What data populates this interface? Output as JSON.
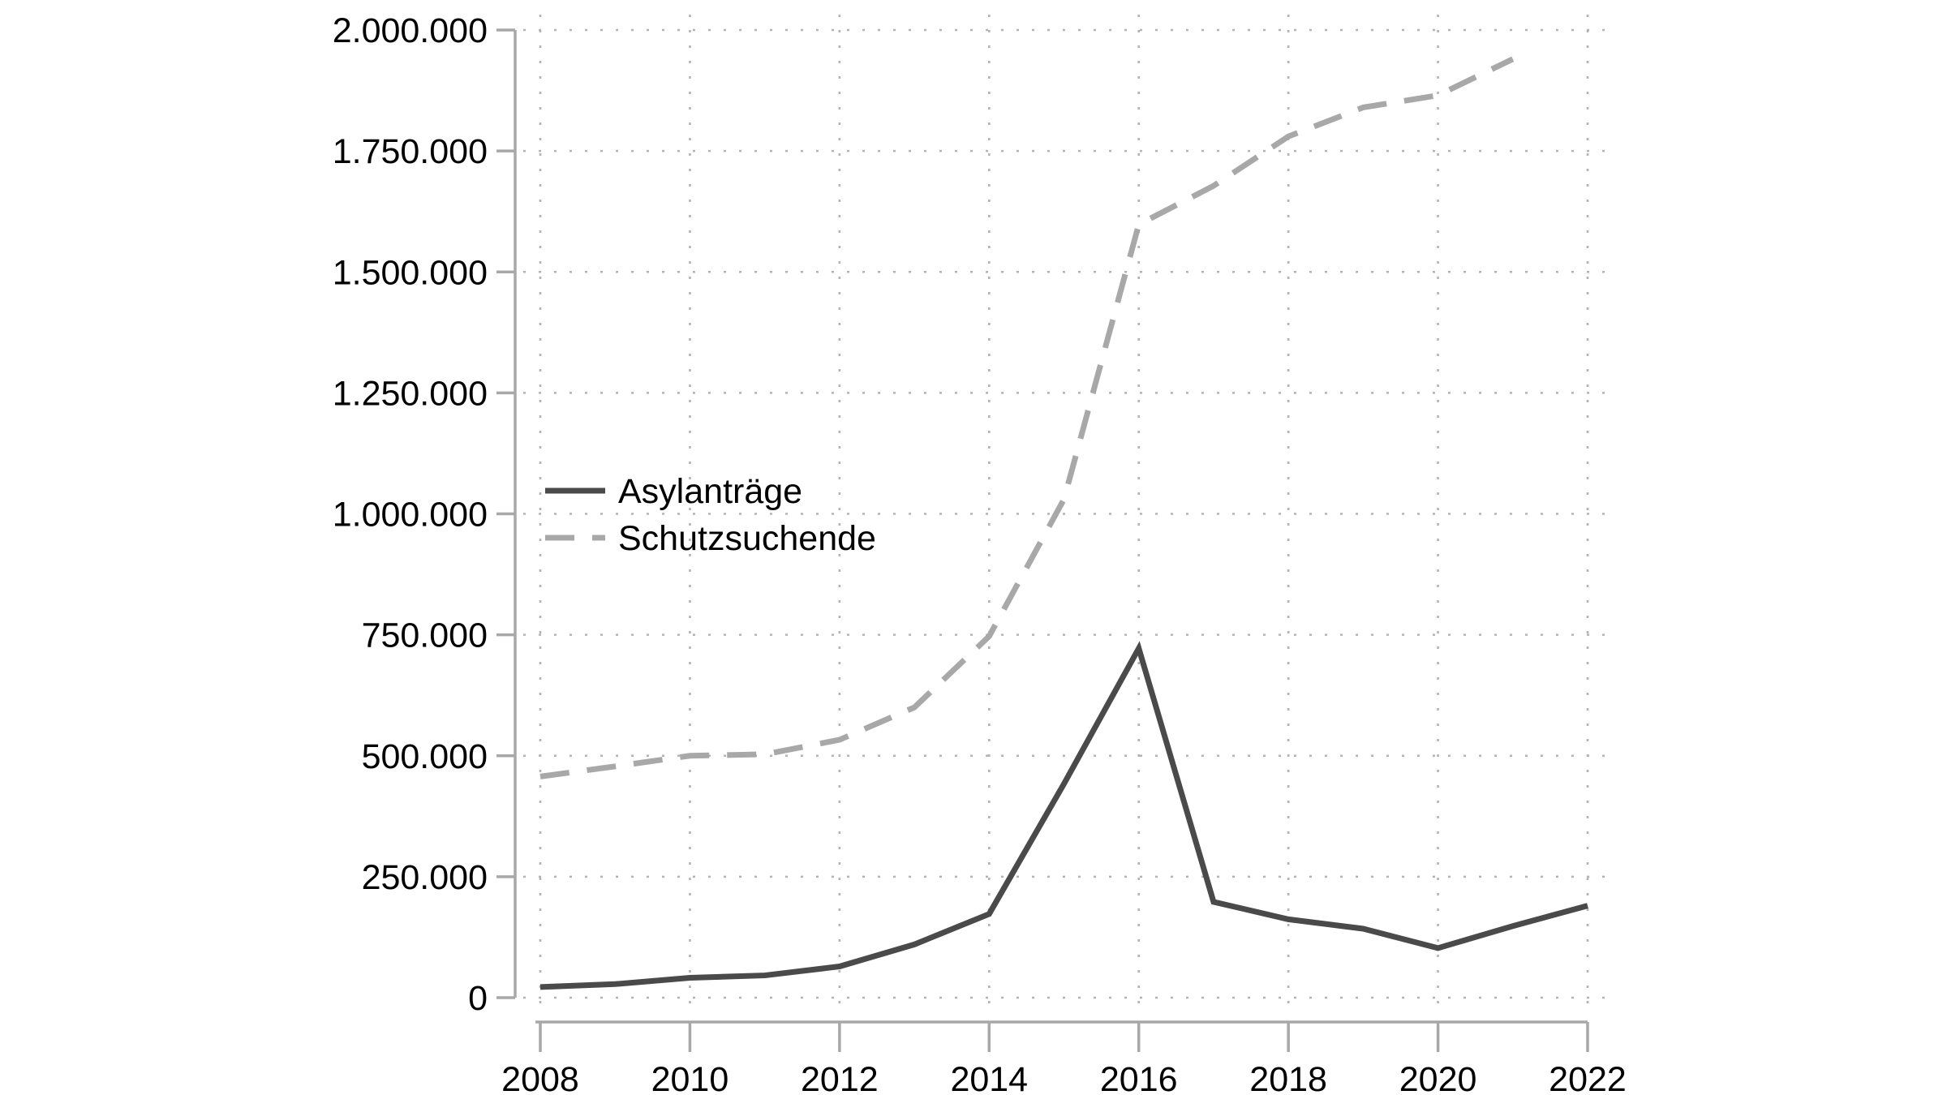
{
  "chart_data": {
    "type": "line",
    "title": "",
    "xlabel": "",
    "ylabel": "",
    "x_years": [
      2008,
      2009,
      2010,
      2011,
      2012,
      2013,
      2014,
      2015,
      2016,
      2017,
      2018,
      2019,
      2020,
      2021,
      2022
    ],
    "series": [
      {
        "name": "Asylanträge",
        "style": "solid",
        "color": "#4a4a4a",
        "values": [
          22000,
          28000,
          41000,
          46000,
          64500,
          110000,
          173000,
          442000,
          722000,
          198000,
          162000,
          142500,
          102500,
          148000,
          190000
        ]
      },
      {
        "name": "Schutzsuchende",
        "style": "dashed",
        "color": "#a8a8a8",
        "values": [
          457000,
          478000,
          500000,
          503000,
          533000,
          600000,
          747000,
          1030000,
          1598000,
          1678000,
          1780000,
          1840000,
          1865000,
          1940000
        ]
      }
    ],
    "xlim": [
      2008,
      2022
    ],
    "ylim": [
      0,
      2000000
    ],
    "y_tick_step": 250000,
    "y_ticks": [
      {
        "value": 0,
        "label": "0"
      },
      {
        "value": 250000,
        "label": "250.000"
      },
      {
        "value": 500000,
        "label": "500.000"
      },
      {
        "value": 750000,
        "label": "750.000"
      },
      {
        "value": 1000000,
        "label": "1.000.000"
      },
      {
        "value": 1250000,
        "label": "1.250.000"
      },
      {
        "value": 1500000,
        "label": "1.500.000"
      },
      {
        "value": 1750000,
        "label": "1.750.000"
      },
      {
        "value": 2000000,
        "label": "2.000.000"
      }
    ],
    "x_ticks": [
      {
        "value": 2008,
        "label": "2008"
      },
      {
        "value": 2010,
        "label": "2010"
      },
      {
        "value": 2012,
        "label": "2012"
      },
      {
        "value": 2014,
        "label": "2014"
      },
      {
        "value": 2016,
        "label": "2016"
      },
      {
        "value": 2018,
        "label": "2018"
      },
      {
        "value": 2020,
        "label": "2020"
      },
      {
        "value": 2022,
        "label": "2022"
      }
    ],
    "grid": "dotted horizontal and vertical",
    "legend_position": "inside upper-left area",
    "colors": {
      "background": "#ffffff",
      "axis": "#a8a8a8",
      "grid_dots": "#b3b3b3",
      "tick_label": "#000000"
    }
  }
}
